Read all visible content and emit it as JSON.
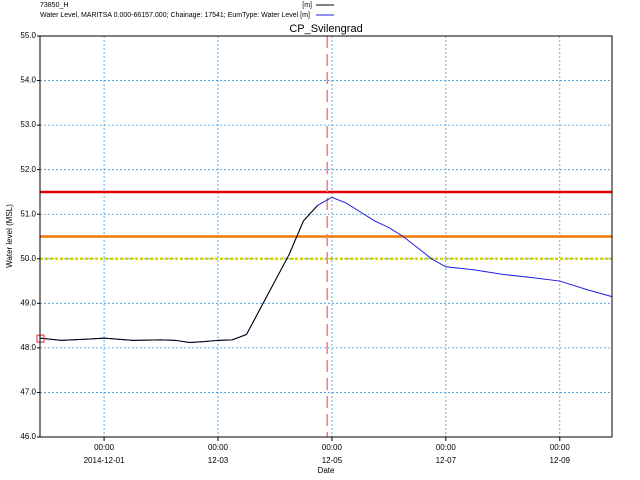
{
  "chart_data": {
    "type": "line",
    "title": "CP_Svilengrad",
    "x_label": "Date",
    "y_label": "Water level (MSL)",
    "x": [
      "2014-11-29 21:00",
      "2014-11-30 06:00",
      "2014-11-30 18:00",
      "2014-12-01 00:00",
      "2014-12-01 12:00",
      "2014-12-02 00:00",
      "2014-12-02 06:00",
      "2014-12-02 12:00",
      "2014-12-02 18:00",
      "2014-12-03 00:00",
      "2014-12-03 06:00",
      "2014-12-03 12:00",
      "2014-12-03 18:00",
      "2014-12-04 00:00",
      "2014-12-04 06:00",
      "2014-12-04 12:00",
      "2014-12-04 18:00",
      "2014-12-05 00:00",
      "2014-12-05 06:00",
      "2014-12-05 12:00",
      "2014-12-05 18:00",
      "2014-12-06 00:00",
      "2014-12-06 06:00",
      "2014-12-06 12:00",
      "2014-12-06 18:00",
      "2014-12-07 00:00",
      "2014-12-07 12:00",
      "2014-12-08 00:00",
      "2014-12-08 12:00",
      "2014-12-09 00:00",
      "2014-12-09 12:00",
      "2014-12-09 22:00"
    ],
    "series": [
      {
        "name": "73850_H",
        "unit": "[m]",
        "color": "#000000",
        "first_point_marker": "#e03030",
        "values": [
          48.22,
          48.17,
          48.2,
          48.22,
          48.17,
          48.18,
          48.17,
          48.12,
          48.14,
          48.17,
          48.18,
          48.3,
          48.9,
          49.5,
          50.1,
          50.85,
          51.2,
          null,
          null,
          null,
          null,
          null,
          null,
          null,
          null,
          null,
          null,
          null,
          null,
          null,
          null,
          null
        ]
      },
      {
        "name": "Water Level, MARITSA 0.000-66157.000; Chainage: 17541; EumType: Water Level [m]",
        "color": "#1f1fdf",
        "values": [
          48.22,
          48.17,
          48.2,
          48.22,
          48.17,
          48.18,
          48.17,
          48.12,
          48.14,
          48.17,
          48.18,
          48.3,
          48.9,
          49.5,
          50.1,
          50.85,
          51.2,
          51.38,
          51.25,
          51.05,
          50.85,
          50.7,
          50.5,
          50.25,
          50.0,
          49.82,
          49.75,
          49.65,
          49.58,
          49.5,
          49.3,
          49.15
        ]
      }
    ],
    "xlim": [
      "2014-11-29 21:00",
      "2014-12-09 22:00"
    ],
    "xticks": [
      {
        "value": "2014-12-01 00:00",
        "label": [
          "00:00",
          "2014-12-01"
        ]
      },
      {
        "value": "2014-12-03 00:00",
        "label": [
          "00:00",
          "12-03"
        ]
      },
      {
        "value": "2014-12-05 00:00",
        "label": [
          "00:00",
          "12-05"
        ]
      },
      {
        "value": "2014-12-07 00:00",
        "label": [
          "00:00",
          "12-07"
        ]
      },
      {
        "value": "2014-12-09 00:00",
        "label": [
          "00:00",
          "12-09"
        ]
      }
    ],
    "ylim": [
      46.0,
      55.0
    ],
    "yticks": [
      {
        "value": 46,
        "label": "46.0"
      },
      {
        "value": 47,
        "label": "47.0"
      },
      {
        "value": 48,
        "label": "48.0"
      },
      {
        "value": 49,
        "label": "49.0"
      },
      {
        "value": 50,
        "label": "50.0"
      },
      {
        "value": 51,
        "label": "51.0"
      },
      {
        "value": 52,
        "label": "52.0"
      },
      {
        "value": 53,
        "label": "53.0"
      },
      {
        "value": 54,
        "label": "54.0"
      },
      {
        "value": 55,
        "label": "55.0"
      }
    ],
    "grid": true,
    "hlines": [
      {
        "value": 51.5,
        "color": "#e8000b",
        "style": "solid"
      },
      {
        "value": 50.5,
        "color": "#f07800",
        "style": "solid"
      },
      {
        "value": 50.0,
        "color": "#d4d400",
        "style": "dashed"
      }
    ],
    "vline": {
      "value": "2014-12-04 22:00",
      "color": "#f08080",
      "style": "dashed"
    }
  }
}
